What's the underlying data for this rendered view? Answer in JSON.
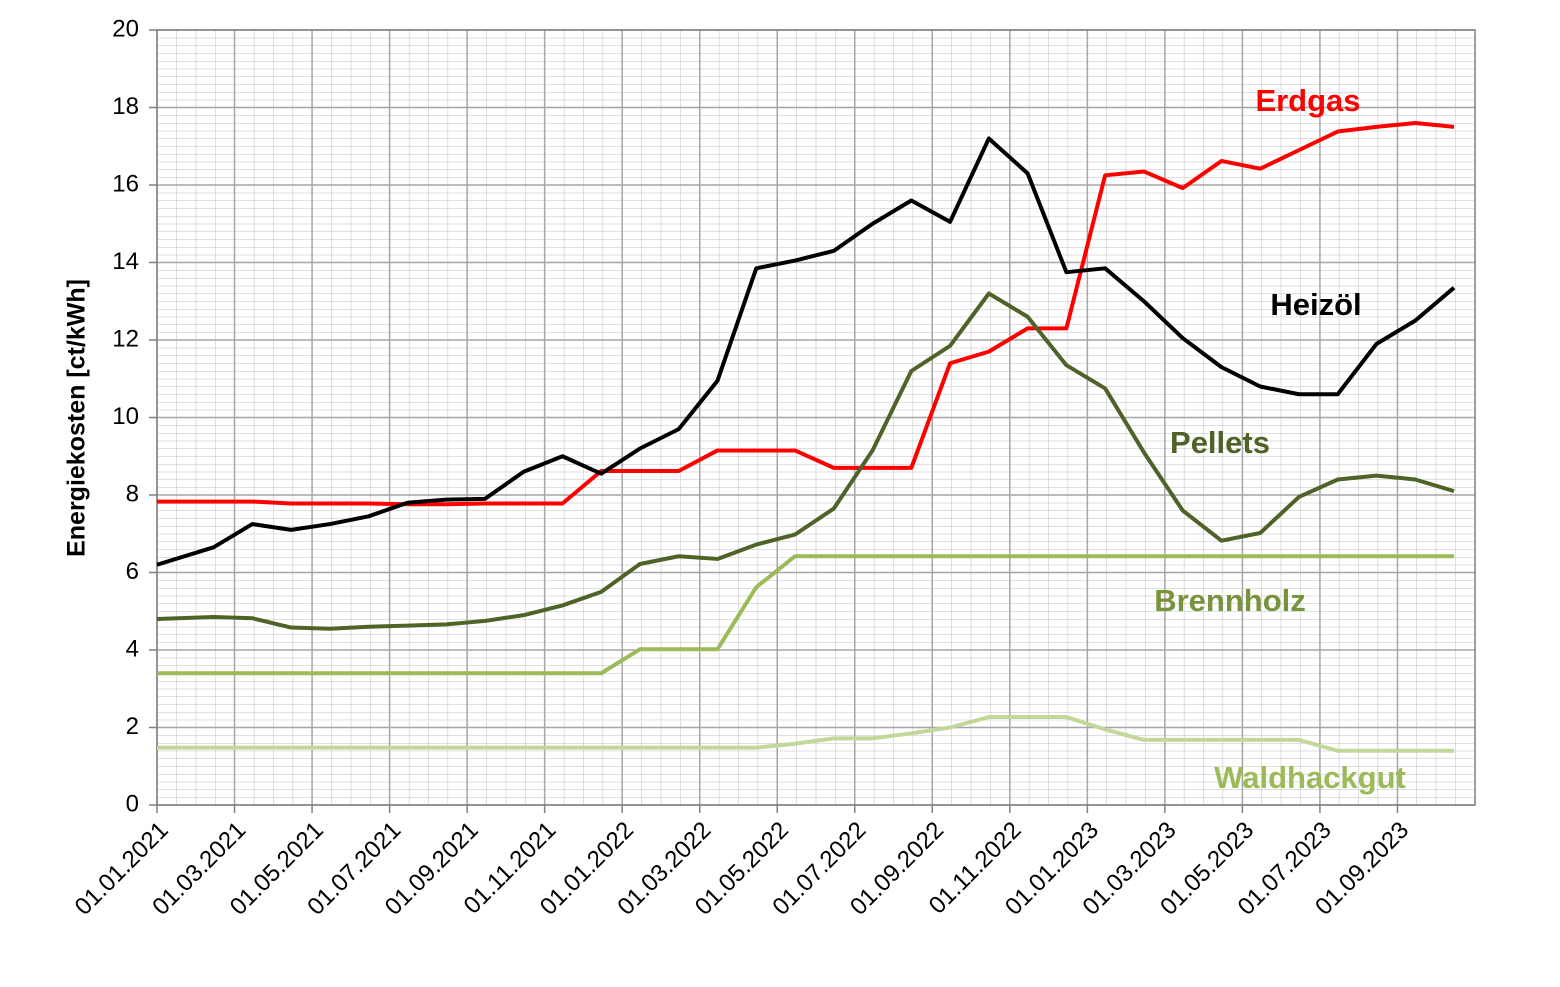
{
  "chart_data": {
    "type": "line",
    "y_label": "Energiekosten [ct/kWh]",
    "ylim": [
      0,
      20
    ],
    "yticks": [
      0,
      2,
      4,
      6,
      8,
      10,
      12,
      14,
      16,
      18,
      20
    ],
    "xlim": [
      "01.01.2021",
      "01.11.2023"
    ],
    "xticks": [
      "01.01.2021",
      "01.03.2021",
      "01.05.2021",
      "01.07.2021",
      "01.09.2021",
      "01.11.2021",
      "01.01.2022",
      "01.03.2022",
      "01.05.2022",
      "01.07.2022",
      "01.09.2022",
      "01.11.2022",
      "01.01.2023",
      "01.03.2023",
      "01.05.2023",
      "01.07.2023",
      "01.09.2023"
    ],
    "grid": true,
    "x": [
      "01.01.2021",
      "15.02.2021",
      "15.03.2021",
      "15.04.2021",
      "15.05.2021",
      "15.06.2021",
      "15.07.2021",
      "15.08.2021",
      "15.09.2021",
      "15.10.2021",
      "15.11.2021",
      "15.12.2021",
      "15.01.2022",
      "15.02.2022",
      "15.03.2022",
      "15.04.2022",
      "15.05.2022",
      "15.06.2022",
      "15.07.2022",
      "15.08.2022",
      "15.09.2022",
      "15.10.2022",
      "15.11.2022",
      "15.12.2022",
      "15.01.2023",
      "15.02.2023",
      "15.03.2023",
      "15.04.2023",
      "15.05.2023",
      "15.06.2023",
      "15.07.2023",
      "15.08.2023",
      "15.09.2023",
      "15.10.2023"
    ],
    "series": [
      {
        "name": "Erdgas",
        "color": "#ff0000",
        "label_color": "#ff0000",
        "values": [
          7.83,
          7.83,
          7.83,
          7.78,
          7.78,
          7.78,
          7.76,
          7.76,
          7.78,
          7.78,
          7.78,
          8.62,
          8.62,
          8.62,
          9.15,
          9.15,
          9.15,
          8.7,
          8.7,
          8.7,
          11.4,
          11.7,
          12.3,
          12.3,
          16.25,
          16.35,
          15.92,
          16.62,
          16.42,
          16.9,
          17.38,
          17.5,
          17.6,
          17.5
        ]
      },
      {
        "name": "Heizöl",
        "color": "#000000",
        "label_color": "#000000",
        "values": [
          6.2,
          6.65,
          7.25,
          7.1,
          7.25,
          7.45,
          7.8,
          7.88,
          7.9,
          8.6,
          9.0,
          8.55,
          9.2,
          9.7,
          10.95,
          13.85,
          14.05,
          14.3,
          15.0,
          15.6,
          15.05,
          17.2,
          16.3,
          13.75,
          13.85,
          13.0,
          12.05,
          11.3,
          10.8,
          10.6,
          10.6,
          11.9,
          12.5,
          13.35
        ]
      },
      {
        "name": "Pellets",
        "color": "#4f6228",
        "label_color": "#4f6228",
        "values": [
          4.8,
          4.85,
          4.82,
          4.58,
          4.55,
          4.6,
          4.63,
          4.66,
          4.75,
          4.9,
          5.15,
          5.5,
          6.22,
          6.42,
          6.35,
          6.72,
          6.98,
          7.65,
          9.15,
          11.2,
          11.85,
          13.2,
          12.6,
          11.35,
          10.75,
          9.1,
          7.6,
          6.82,
          7.02,
          7.95,
          8.4,
          8.5,
          8.4,
          8.1
        ]
      },
      {
        "name": "Brennholz",
        "color": "#9bbb59",
        "label_color": "#77933c",
        "values": [
          3.4,
          3.4,
          3.4,
          3.4,
          3.4,
          3.4,
          3.4,
          3.4,
          3.4,
          3.4,
          3.4,
          3.4,
          4.02,
          4.02,
          4.02,
          5.62,
          6.42,
          6.42,
          6.42,
          6.42,
          6.42,
          6.42,
          6.42,
          6.42,
          6.42,
          6.42,
          6.42,
          6.42,
          6.42,
          6.42,
          6.42,
          6.42,
          6.42,
          6.42
        ]
      },
      {
        "name": "Waldhackgut",
        "color": "#c4d79b",
        "label_color": "#9bbb59",
        "values": [
          1.48,
          1.48,
          1.48,
          1.48,
          1.48,
          1.48,
          1.48,
          1.48,
          1.48,
          1.48,
          1.48,
          1.48,
          1.48,
          1.48,
          1.48,
          1.48,
          1.58,
          1.72,
          1.72,
          1.85,
          2.0,
          2.27,
          2.27,
          2.27,
          1.95,
          1.68,
          1.68,
          1.68,
          1.68,
          1.68,
          1.4,
          1.4,
          1.4,
          1.4
        ]
      }
    ]
  }
}
